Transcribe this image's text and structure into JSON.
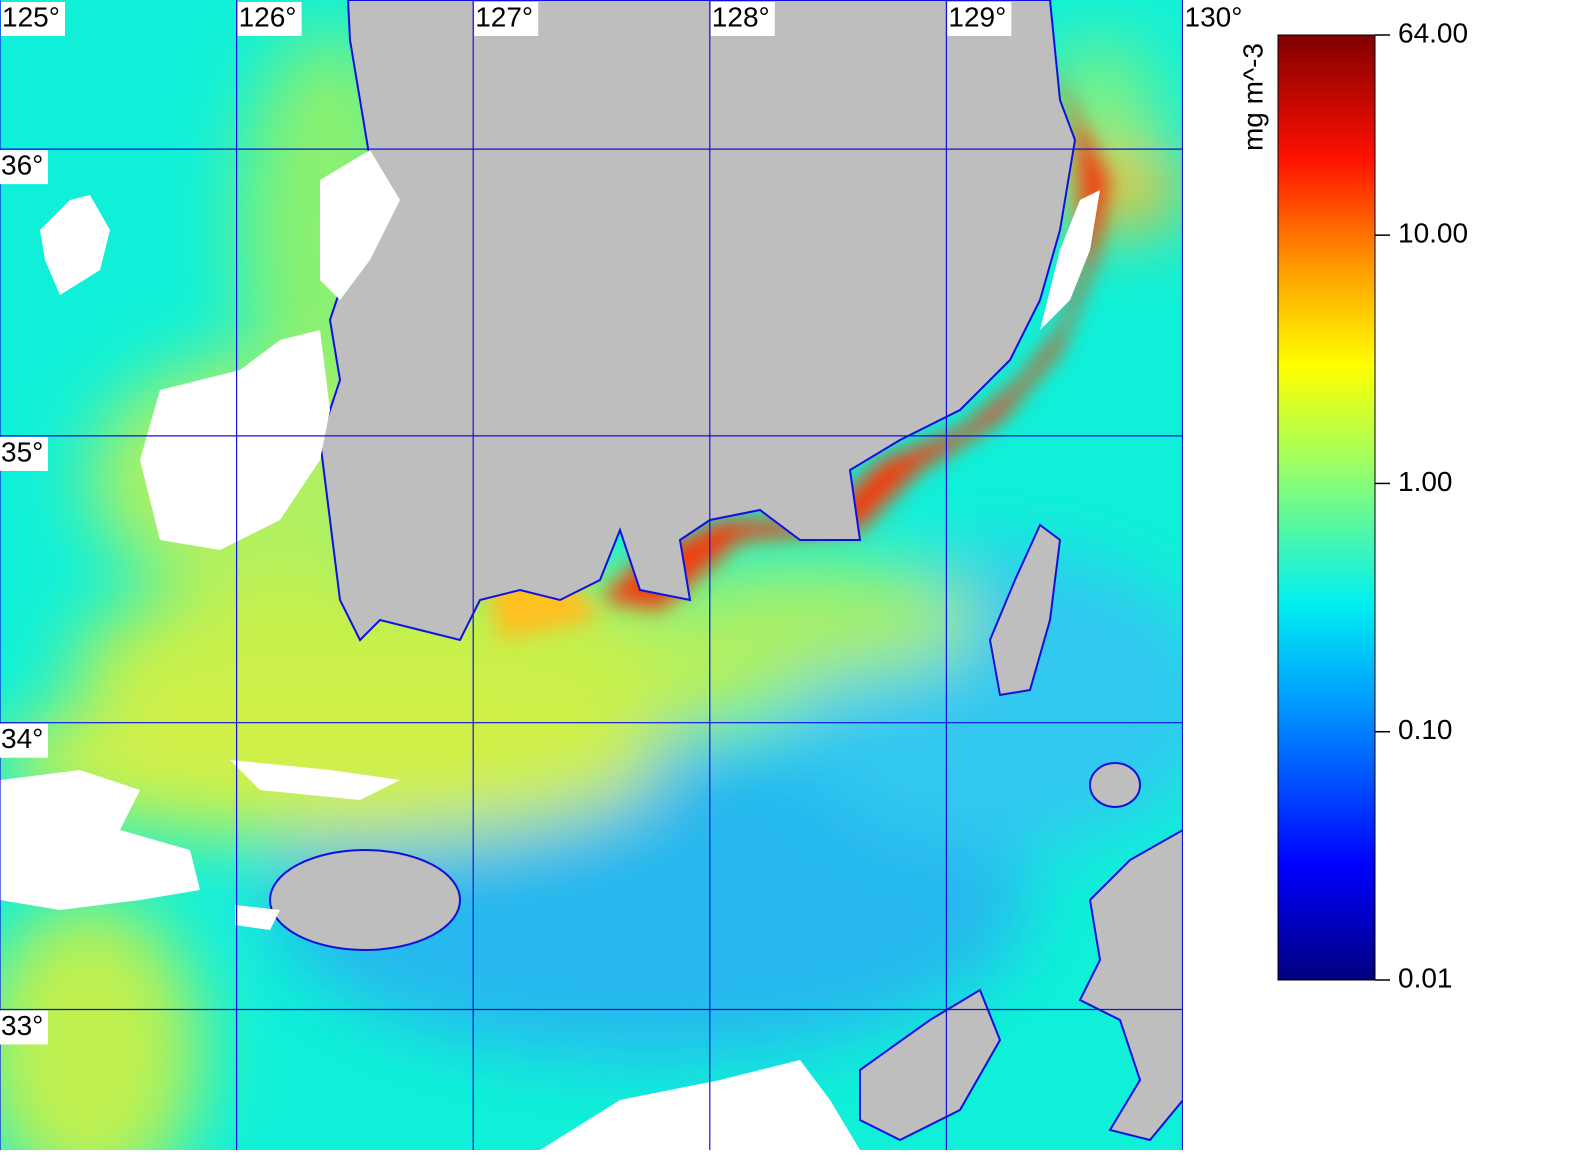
{
  "map": {
    "lon_range": [
      125,
      130
    ],
    "lat_range": [
      32.51,
      36.52
    ],
    "lon_ticks": [
      {
        "value": 125,
        "label": "125°"
      },
      {
        "value": 126,
        "label": "126°"
      },
      {
        "value": 127,
        "label": "127°"
      },
      {
        "value": 128,
        "label": "128°"
      },
      {
        "value": 129,
        "label": "129°"
      },
      {
        "value": 130,
        "label": "130°"
      }
    ],
    "lat_ticks": [
      {
        "value": 36,
        "label": "36°"
      },
      {
        "value": 35,
        "label": "35°"
      },
      {
        "value": 34,
        "label": "34°"
      },
      {
        "value": 33,
        "label": "33°"
      }
    ],
    "colorbar": {
      "label": "mg m^-3",
      "log_scale": true,
      "range": [
        0.01,
        64
      ],
      "ticks": [
        {
          "value": 64,
          "label": "64.00"
        },
        {
          "value": 10,
          "label": "10.00"
        },
        {
          "value": 1,
          "label": "1.00"
        },
        {
          "value": 0.1,
          "label": "0.10"
        },
        {
          "value": 0.01,
          "label": "0.01"
        }
      ]
    }
  }
}
